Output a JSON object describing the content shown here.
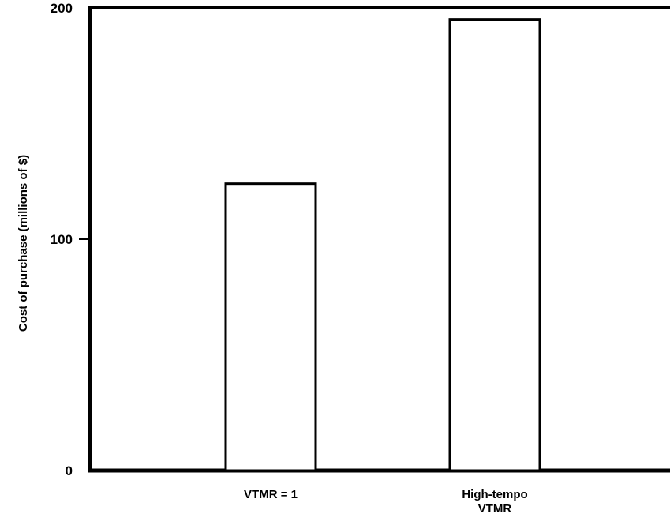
{
  "chart_data": {
    "type": "bar",
    "title": "",
    "xlabel": "",
    "ylabel": "Cost of purchase (millions of $)",
    "categories": [
      [
        "VTMR = 1"
      ],
      [
        "High-tempo",
        "VTMR"
      ]
    ],
    "values": [
      124,
      195
    ],
    "ylim": [
      0,
      200
    ],
    "yticks": [
      {
        "value": 0,
        "label": "0"
      },
      {
        "value": 100,
        "label": "100"
      },
      {
        "value": 200,
        "label": "200"
      }
    ],
    "grid": false,
    "legend": "none",
    "colors": {
      "bar_fill": "#ffffff",
      "bar_stroke": "#000000",
      "axis": "#000000"
    }
  }
}
